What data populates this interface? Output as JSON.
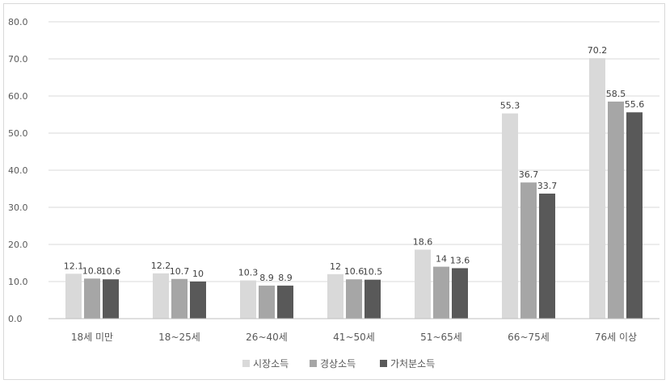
{
  "chart_data": {
    "type": "bar",
    "categories": [
      "18세 미만",
      "18~25세",
      "26~40세",
      "41~50세",
      "51~65세",
      "66~75세",
      "76세 이상"
    ],
    "series": [
      {
        "name": "시장소득",
        "color": "#d9d9d9",
        "values": [
          12.1,
          12.2,
          10.3,
          12.0,
          18.6,
          55.3,
          70.2
        ]
      },
      {
        "name": "경상소득",
        "color": "#a6a6a6",
        "values": [
          10.8,
          10.7,
          8.9,
          10.6,
          14.0,
          36.7,
          58.5
        ]
      },
      {
        "name": "가처분소득",
        "color": "#595959",
        "values": [
          10.6,
          10.0,
          8.9,
          10.5,
          13.6,
          33.7,
          55.6
        ]
      }
    ],
    "yticks": [
      "0.0",
      "10.0",
      "20.0",
      "30.0",
      "40.0",
      "50.0",
      "60.0",
      "70.0",
      "80.0"
    ],
    "ylim": [
      0,
      80
    ],
    "grid": true,
    "legend_position": "bottom"
  }
}
